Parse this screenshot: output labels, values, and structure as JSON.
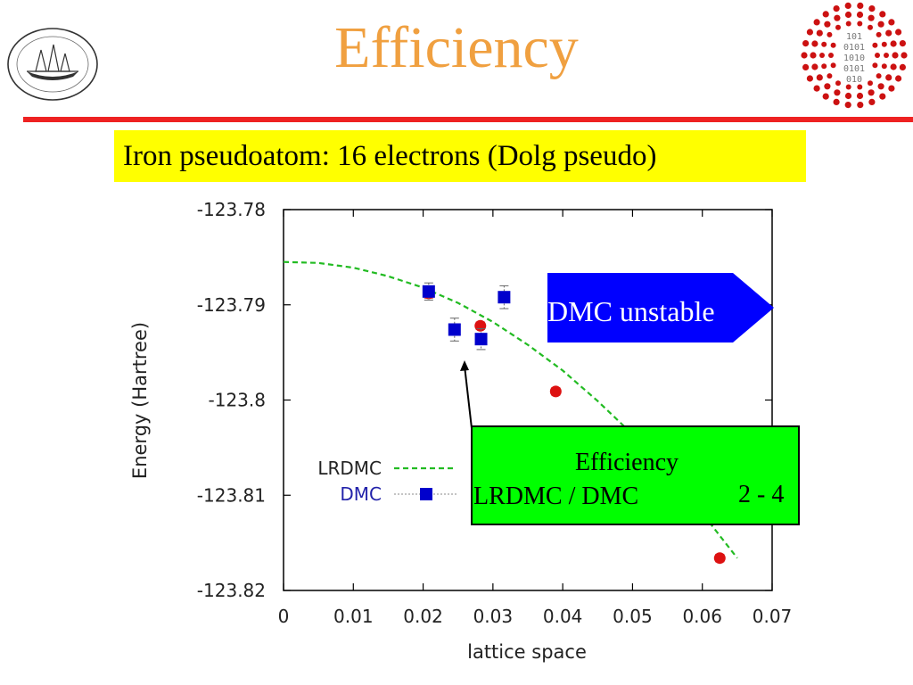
{
  "slide": {
    "title": "Efficiency",
    "subtitle": "Iron pseudoatom: 16 electrons (Dolg pseudo)"
  },
  "callouts": {
    "unstable": "DMC unstable",
    "efficiency_title": "Efficiency",
    "efficiency_ratio": "LRDMC / DMC",
    "efficiency_symbol": "",
    "efficiency_value": "2 - 4"
  },
  "colors": {
    "title": "#f0a040",
    "rule": "#ee2222",
    "subtitle_bg": "#ffff00",
    "fit_line": "#22bb22",
    "lrdmc_points": "#dd1111",
    "dmc_points": "#0000cc",
    "unstable_bg": "#0000ff",
    "efficiency_bg": "#00ff00"
  },
  "chart_data": {
    "type": "scatter",
    "xlabel": "lattice space",
    "ylabel": "Energy (Hartree)",
    "xlim": [
      0,
      0.07
    ],
    "ylim": [
      -123.82,
      -123.78
    ],
    "x_ticks": [
      {
        "value": 0,
        "label": "0"
      },
      {
        "value": 0.01,
        "label": "0.01"
      },
      {
        "value": 0.02,
        "label": "0.02"
      },
      {
        "value": 0.03,
        "label": "0.03"
      },
      {
        "value": 0.04,
        "label": "0.04"
      },
      {
        "value": 0.05,
        "label": "0.05"
      },
      {
        "value": 0.06,
        "label": "0.06"
      },
      {
        "value": 0.07,
        "label": "0.07"
      }
    ],
    "y_ticks": [
      {
        "value": -123.78,
        "label": "-123.78"
      },
      {
        "value": -123.79,
        "label": "-123.79"
      },
      {
        "value": -123.8,
        "label": "-123.8"
      },
      {
        "value": -123.81,
        "label": "-123.81"
      },
      {
        "value": -123.82,
        "label": "-123.82"
      }
    ],
    "legend_position": "bottom-left",
    "legend": [
      {
        "label": "LRDMC",
        "style": "dashed-line",
        "color": "#22bb22"
      },
      {
        "label": "DMC",
        "style": "square-marker",
        "color": "#0000cc"
      }
    ],
    "series": [
      {
        "name": "LRDMC",
        "kind": "points",
        "marker": "circle",
        "color": "#dd1111",
        "x": [
          0.0208,
          0.0282,
          0.039,
          0.0625
        ],
        "y": [
          -123.7888,
          -123.7922,
          -123.7991,
          -123.8166
        ],
        "err": [
          0.0005,
          0.0004,
          0.0004,
          0.0004
        ]
      },
      {
        "name": "LRDMC",
        "kind": "fit",
        "color": "#22bb22",
        "x": [
          0,
          0.005,
          0.01,
          0.015,
          0.02,
          0.025,
          0.03,
          0.035,
          0.04,
          0.045,
          0.05,
          0.055,
          0.06,
          0.065
        ],
        "y": [
          -123.7855,
          -123.7856,
          -123.7861,
          -123.787,
          -123.7882,
          -123.7898,
          -123.7918,
          -123.7942,
          -123.7969,
          -123.8001,
          -123.8036,
          -123.8075,
          -123.8119,
          -123.8166
        ]
      },
      {
        "name": "DMC",
        "kind": "points",
        "marker": "square",
        "color": "#0000cc",
        "x": [
          0.0208,
          0.0245,
          0.0283,
          0.0316
        ],
        "y": [
          -123.7886,
          -123.7926,
          -123.7936,
          -123.7892
        ],
        "err": [
          0.0009,
          0.0012,
          0.0011,
          0.0012
        ]
      }
    ]
  }
}
